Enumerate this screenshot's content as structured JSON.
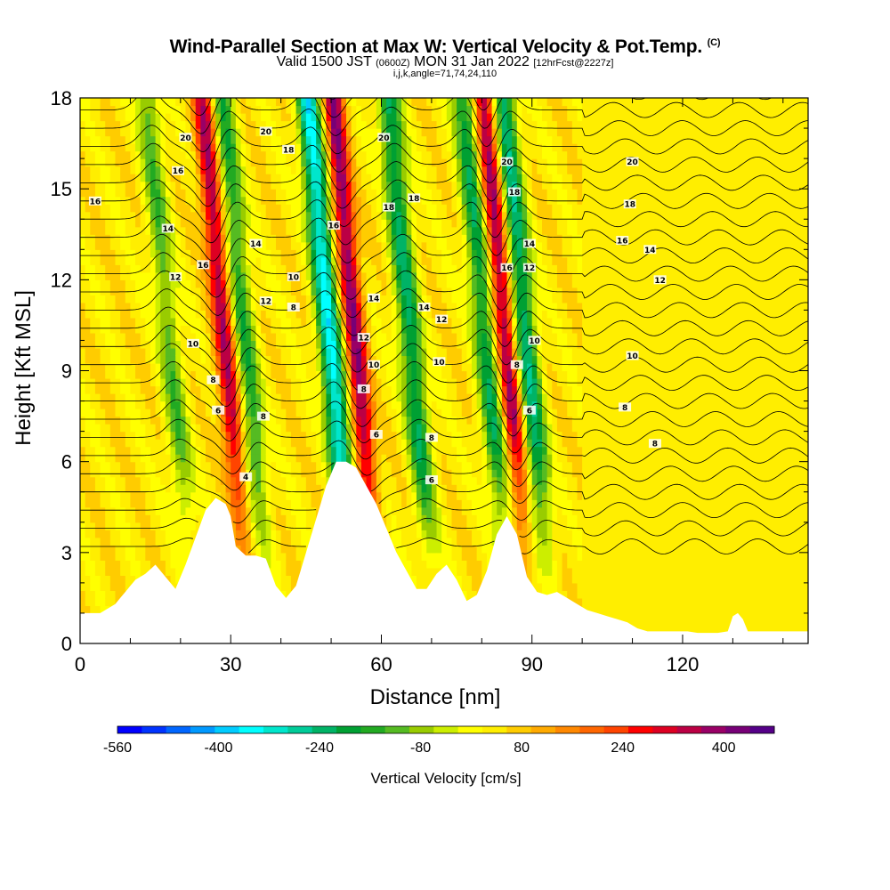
{
  "chart_data": {
    "type": "heatmap",
    "title": "Wind-Parallel Section at Max W: Vertical Velocity & Pot.Temp.",
    "title_mark": "(C)",
    "subtitle_parts": [
      "Valid 1500 JST",
      "(0600Z)",
      "MON 31 Jan 2022",
      "[12hrFcst@2227z]"
    ],
    "subtitle2": "i,j,k,angle=71,74,24,110",
    "xlabel": "Distance [nm]",
    "ylabel": "Height [Kft MSL]",
    "xlim": [
      0,
      145
    ],
    "ylim": [
      0,
      18
    ],
    "x_ticks": [
      "0",
      "30",
      "60",
      "90",
      "120"
    ],
    "x_tick_values": [
      0,
      30,
      60,
      90,
      120
    ],
    "y_ticks": [
      "0",
      "3",
      "6",
      "9",
      "12",
      "15",
      "18"
    ],
    "y_tick_values": [
      0,
      3,
      6,
      9,
      12,
      15,
      18
    ],
    "colorbar": {
      "label": "Vertical Velocity [cm/s]",
      "tick_labels": [
        "-560",
        "-400",
        "-240",
        "-80",
        "80",
        "240",
        "400"
      ],
      "tick_values": [
        -560,
        -400,
        -240,
        -80,
        80,
        240,
        400
      ],
      "min": -560,
      "max": 480,
      "colors": [
        "#0000ff",
        "#0033ff",
        "#0066ff",
        "#0099ff",
        "#00ccff",
        "#00ffff",
        "#00e6cc",
        "#00cc99",
        "#00b366",
        "#00a033",
        "#22aa22",
        "#55bb22",
        "#99cc00",
        "#ccee00",
        "#ffff00",
        "#ffee00",
        "#ffcc00",
        "#ffaa00",
        "#ff8800",
        "#ff6600",
        "#ff4400",
        "#ff0000",
        "#dd0022",
        "#bb0044",
        "#990066",
        "#770077",
        "#550088"
      ]
    },
    "series": [
      {
        "name": "Vertical Velocity",
        "units": "cm/s",
        "updraft_cores": [
          {
            "x": 31,
            "peak": 320
          },
          {
            "x": 57,
            "peak": 360
          },
          {
            "x": 87,
            "peak": 340
          }
        ],
        "downdraft_cores": [
          {
            "x": 20,
            "min": -160
          },
          {
            "x": 35,
            "min": -200
          },
          {
            "x": 52,
            "min": -380
          },
          {
            "x": 68,
            "min": -260
          },
          {
            "x": 83,
            "min": -240
          },
          {
            "x": 91,
            "min": -280
          }
        ]
      },
      {
        "name": "Pot.Temp.",
        "contour_labels": [
          "4",
          "6",
          "8",
          "10",
          "12",
          "14",
          "16",
          "18",
          "20"
        ]
      }
    ],
    "terrain_kft": {
      "x": [
        0,
        4,
        5,
        7,
        8,
        9,
        10,
        11,
        13,
        15,
        17,
        19,
        21,
        23,
        25,
        27,
        29,
        30,
        31,
        33,
        35,
        37,
        39,
        41,
        43,
        45,
        47,
        49,
        51,
        53,
        55,
        57,
        59,
        61,
        63,
        65,
        67,
        69,
        71,
        73,
        75,
        77,
        79,
        81,
        83,
        85,
        87,
        89,
        91,
        93,
        95,
        97,
        99,
        101,
        103,
        105,
        107,
        109,
        111,
        113,
        115,
        117,
        119,
        121,
        123,
        125,
        127,
        129,
        130,
        131,
        132,
        133,
        135,
        137,
        140,
        145
      ],
      "y": [
        1.0,
        1.0,
        1.1,
        1.3,
        1.5,
        1.7,
        1.9,
        2.1,
        2.3,
        2.6,
        2.2,
        1.8,
        2.6,
        3.5,
        4.4,
        4.8,
        4.6,
        4.2,
        3.2,
        2.9,
        2.9,
        2.8,
        1.9,
        1.5,
        1.9,
        3.0,
        4.1,
        5.2,
        6.0,
        6.0,
        5.8,
        5.2,
        4.6,
        3.8,
        3.0,
        2.4,
        1.8,
        1.8,
        2.3,
        2.6,
        2.1,
        1.4,
        1.6,
        2.4,
        3.6,
        4.2,
        3.6,
        2.2,
        1.7,
        1.6,
        1.7,
        1.5,
        1.3,
        1.1,
        1.0,
        0.9,
        0.8,
        0.7,
        0.5,
        0.4,
        0.4,
        0.4,
        0.4,
        0.4,
        0.35,
        0.35,
        0.35,
        0.4,
        0.9,
        1.0,
        0.8,
        0.4,
        0.4,
        0.4,
        0.4,
        0.4
      ]
    }
  }
}
